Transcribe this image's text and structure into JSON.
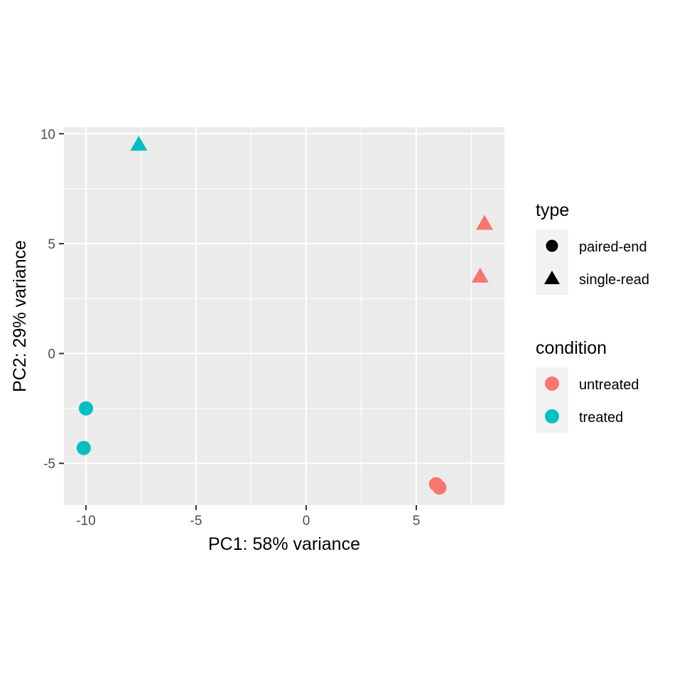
{
  "chart_data": {
    "type": "scatter",
    "title": "",
    "xlabel": "PC1: 58% variance",
    "ylabel": "PC2: 29% variance",
    "xlim": [
      -11.0,
      9.0
    ],
    "ylim": [
      -6.9,
      10.3
    ],
    "x_major_ticks": [
      -10,
      -5,
      0,
      5
    ],
    "y_major_ticks": [
      -5,
      0,
      5,
      10
    ],
    "x_minor_ticks": [
      -7.5,
      -2.5,
      2.5,
      7.5
    ],
    "y_minor_ticks": [
      -2.5,
      2.5,
      7.5
    ],
    "x_tick_labels": [
      "-10",
      "-5",
      "0",
      "5"
    ],
    "y_tick_labels": [
      "-5",
      "0",
      "5",
      "10"
    ],
    "colors": {
      "untreated": "#F8766D",
      "treated": "#00BFC4",
      "panel": "#EBEBEB",
      "grid": "#FFFFFF",
      "legend_key": "#F2F2F2"
    },
    "points": [
      {
        "x": -7.6,
        "y": 9.5,
        "condition": "treated",
        "type": "single-read"
      },
      {
        "x": -10.0,
        "y": -2.5,
        "condition": "treated",
        "type": "paired-end"
      },
      {
        "x": -10.1,
        "y": -4.3,
        "condition": "treated",
        "type": "paired-end"
      },
      {
        "x": 8.1,
        "y": 5.9,
        "condition": "untreated",
        "type": "single-read"
      },
      {
        "x": 7.9,
        "y": 3.5,
        "condition": "untreated",
        "type": "single-read"
      },
      {
        "x": 5.9,
        "y": -5.95,
        "condition": "untreated",
        "type": "paired-end"
      },
      {
        "x": 6.05,
        "y": -6.1,
        "condition": "untreated",
        "type": "paired-end"
      }
    ],
    "legends": [
      {
        "title": "type",
        "entries": [
          {
            "label": "paired-end",
            "shape": "circle",
            "color": "#000000"
          },
          {
            "label": "single-read",
            "shape": "triangle",
            "color": "#000000"
          }
        ]
      },
      {
        "title": "condition",
        "entries": [
          {
            "label": "untreated",
            "shape": "circle",
            "color": "#F8766D"
          },
          {
            "label": "treated",
            "shape": "circle",
            "color": "#00BFC4"
          }
        ]
      }
    ]
  }
}
